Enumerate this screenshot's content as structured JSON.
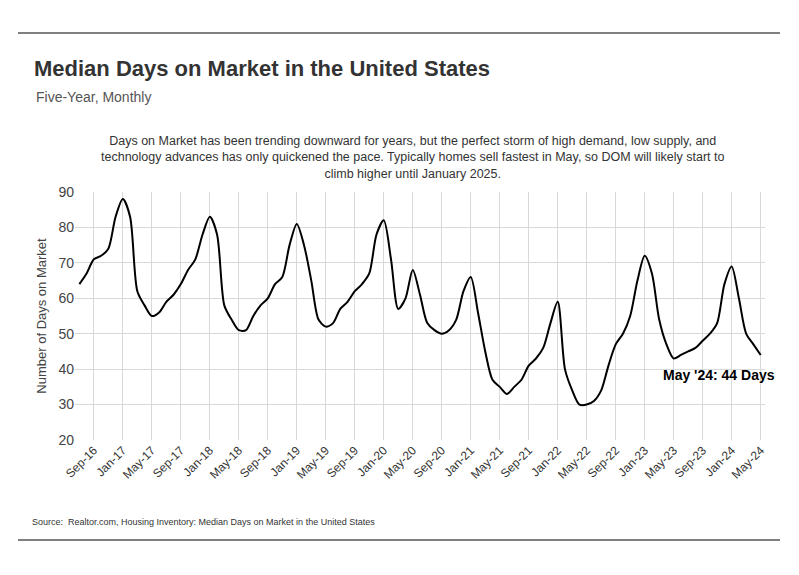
{
  "chart_data": {
    "type": "line",
    "title": "Median Days on Market in the United States",
    "subtitle": "Five-Year, Monthly",
    "description": [
      "Days on Market has been trending downward for years, but the perfect storm of high demand, low supply, and",
      "technology advances has only quickened the pace. Typically homes sell fastest in May, so DOM will likely start to",
      "climb higher until January 2025."
    ],
    "annotation": "May '24: 44 Days",
    "y_label": "Number of Days on Market",
    "source": "Source:  Realtor.com, Housing Inventory: Median Days on Market in the United States",
    "categories": [
      null,
      null,
      "Sep-16",
      null,
      null,
      null,
      "Jan-17",
      null,
      null,
      null,
      "May-17",
      null,
      null,
      null,
      "Sep-17",
      null,
      null,
      null,
      "Jan-18",
      null,
      null,
      null,
      "May-18",
      null,
      null,
      null,
      "Sep-18",
      null,
      null,
      null,
      "Jan-19",
      null,
      null,
      null,
      "May-19",
      null,
      null,
      null,
      "Sep-19",
      null,
      null,
      null,
      "Jan-20",
      null,
      null,
      null,
      "May-20",
      null,
      null,
      null,
      "Sep-20",
      null,
      null,
      null,
      "Jan-21",
      null,
      null,
      null,
      "May-21",
      null,
      null,
      null,
      "Sep-21",
      null,
      null,
      null,
      "Jan-22",
      null,
      null,
      null,
      "May-22",
      null,
      null,
      null,
      "Sep-22",
      null,
      null,
      null,
      "Jan-23",
      null,
      null,
      null,
      "May-23",
      null,
      null,
      null,
      "Sep-23",
      null,
      null,
      null,
      "Jan-24",
      null,
      null,
      null,
      "May-24"
    ],
    "values": [
      64,
      67,
      71,
      72,
      74,
      83,
      88,
      83,
      62,
      58,
      55,
      56,
      59,
      61,
      64,
      68,
      71,
      78,
      83,
      78,
      58,
      54,
      51,
      51,
      55,
      58,
      60,
      64,
      66,
      75,
      81,
      75,
      65,
      54,
      52,
      53,
      57,
      59,
      62,
      64,
      67,
      78,
      82,
      71,
      57,
      60,
      68,
      61,
      53,
      51,
      50,
      51,
      54,
      62,
      66,
      56,
      45,
      37,
      35,
      33,
      35,
      37,
      41,
      43,
      46,
      53,
      59,
      40,
      34,
      30,
      30,
      31,
      34,
      41,
      47,
      50,
      55,
      65,
      72,
      67,
      54,
      47,
      43,
      44,
      45,
      46,
      48,
      50,
      53,
      64,
      69,
      60,
      50,
      47,
      44
    ],
    "color": "#000000",
    "ylim": [
      20,
      90
    ],
    "yticks": [
      20,
      30,
      40,
      50,
      60,
      70,
      80,
      90
    ],
    "grid": true
  }
}
